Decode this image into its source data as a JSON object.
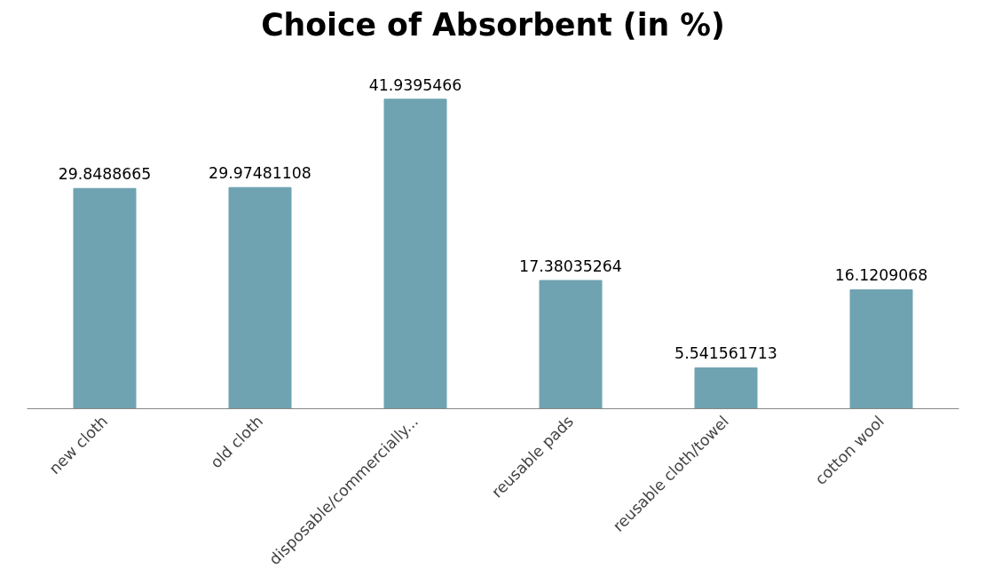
{
  "chart_data": {
    "type": "bar",
    "title": "Choice of Absorbent (in %)",
    "categories": [
      "new cloth",
      "old cloth",
      "disposable/commercially...",
      "reusable pads",
      "reusable cloth/towel",
      "cotton wool"
    ],
    "values": [
      29.8488665,
      29.97481108,
      41.9395466,
      17.38035264,
      5.541561713,
      16.1209068
    ],
    "color": "#6fa3b1",
    "data_labels": true,
    "grid": false
  }
}
